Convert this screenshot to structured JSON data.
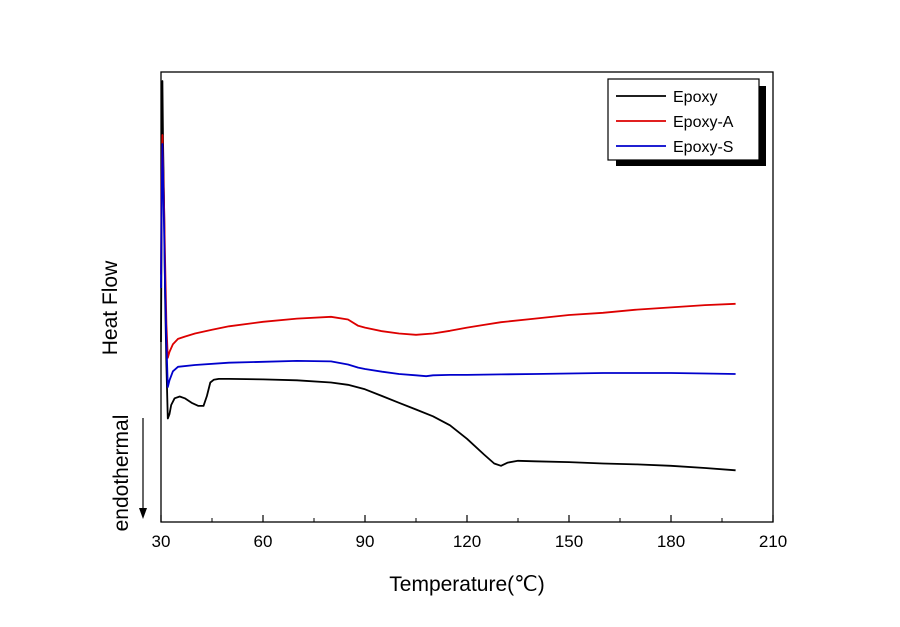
{
  "chart_data": {
    "type": "line",
    "title": "",
    "xlabel": "Temperature(℃)",
    "ylabel": "Heat Flow",
    "direction_label": "endothermal",
    "xlim": [
      30,
      210
    ],
    "x_ticks": [
      30,
      60,
      90,
      120,
      150,
      180,
      210
    ],
    "ylim": [
      0,
      100
    ],
    "grid": false,
    "legend_position": "top-right",
    "series": [
      {
        "name": "Epoxy",
        "color": "#000000",
        "points": [
          [
            30.0,
            40
          ],
          [
            30.2,
            70
          ],
          [
            30.4,
            98
          ],
          [
            30.6,
            85
          ],
          [
            30.9,
            70
          ],
          [
            31.2,
            50
          ],
          [
            31.6,
            35
          ],
          [
            32.0,
            23
          ],
          [
            32.5,
            24
          ],
          [
            33.0,
            26
          ],
          [
            34.0,
            27.5
          ],
          [
            35.5,
            27.9
          ],
          [
            37.0,
            27.5
          ],
          [
            39.0,
            26.5
          ],
          [
            41.0,
            25.8
          ],
          [
            42.5,
            25.8
          ],
          [
            43.5,
            28
          ],
          [
            44.5,
            31
          ],
          [
            45.5,
            31.6
          ],
          [
            47.0,
            31.8
          ],
          [
            50,
            31.8
          ],
          [
            60,
            31.7
          ],
          [
            70,
            31.5
          ],
          [
            80,
            31
          ],
          [
            85,
            30.5
          ],
          [
            90,
            29.5
          ],
          [
            95,
            28
          ],
          [
            100,
            26.5
          ],
          [
            105,
            25
          ],
          [
            110,
            23.5
          ],
          [
            115,
            21.5
          ],
          [
            120,
            18.5
          ],
          [
            125,
            15
          ],
          [
            128,
            13
          ],
          [
            130,
            12.5
          ],
          [
            132,
            13.2
          ],
          [
            135,
            13.6
          ],
          [
            140,
            13.5
          ],
          [
            150,
            13.3
          ],
          [
            160,
            13
          ],
          [
            170,
            12.8
          ],
          [
            180,
            12.5
          ],
          [
            190,
            12
          ],
          [
            199,
            11.5
          ]
        ]
      },
      {
        "name": "Epoxy-A",
        "color": "#dd0000",
        "points": [
          [
            30.0,
            55
          ],
          [
            30.2,
            76
          ],
          [
            30.4,
            86
          ],
          [
            30.6,
            80
          ],
          [
            30.9,
            70
          ],
          [
            31.2,
            58
          ],
          [
            31.6,
            44
          ],
          [
            32.0,
            36.5
          ],
          [
            32.5,
            37.8
          ],
          [
            33.5,
            39.5
          ],
          [
            35,
            40.7
          ],
          [
            37,
            41.2
          ],
          [
            40,
            41.9
          ],
          [
            45,
            42.7
          ],
          [
            50,
            43.5
          ],
          [
            60,
            44.5
          ],
          [
            70,
            45.2
          ],
          [
            80,
            45.6
          ],
          [
            85,
            45
          ],
          [
            88,
            43.6
          ],
          [
            90,
            43.2
          ],
          [
            95,
            42.4
          ],
          [
            100,
            41.9
          ],
          [
            105,
            41.6
          ],
          [
            110,
            41.9
          ],
          [
            115,
            42.5
          ],
          [
            120,
            43.2
          ],
          [
            125,
            43.8
          ],
          [
            130,
            44.4
          ],
          [
            140,
            45.2
          ],
          [
            150,
            46
          ],
          [
            160,
            46.5
          ],
          [
            170,
            47.2
          ],
          [
            180,
            47.7
          ],
          [
            190,
            48.2
          ],
          [
            199,
            48.5
          ]
        ]
      },
      {
        "name": "Epoxy-S",
        "color": "#0000cc",
        "points": [
          [
            30.0,
            52
          ],
          [
            30.2,
            72
          ],
          [
            30.4,
            84
          ],
          [
            30.6,
            78
          ],
          [
            30.9,
            65
          ],
          [
            31.2,
            52
          ],
          [
            31.6,
            40
          ],
          [
            32.0,
            30
          ],
          [
            32.5,
            31.5
          ],
          [
            33.5,
            33.5
          ],
          [
            35,
            34.5
          ],
          [
            40,
            34.9
          ],
          [
            50,
            35.4
          ],
          [
            60,
            35.6
          ],
          [
            70,
            35.8
          ],
          [
            80,
            35.7
          ],
          [
            85,
            35
          ],
          [
            88,
            34.3
          ],
          [
            90,
            34
          ],
          [
            95,
            33.4
          ],
          [
            100,
            32.9
          ],
          [
            105,
            32.6
          ],
          [
            108,
            32.4
          ],
          [
            110,
            32.6
          ],
          [
            115,
            32.7
          ],
          [
            120,
            32.7
          ],
          [
            130,
            32.8
          ],
          [
            140,
            32.9
          ],
          [
            150,
            33
          ],
          [
            160,
            33.1
          ],
          [
            170,
            33.1
          ],
          [
            180,
            33.1
          ],
          [
            190,
            33
          ],
          [
            199,
            32.9
          ]
        ]
      }
    ]
  }
}
